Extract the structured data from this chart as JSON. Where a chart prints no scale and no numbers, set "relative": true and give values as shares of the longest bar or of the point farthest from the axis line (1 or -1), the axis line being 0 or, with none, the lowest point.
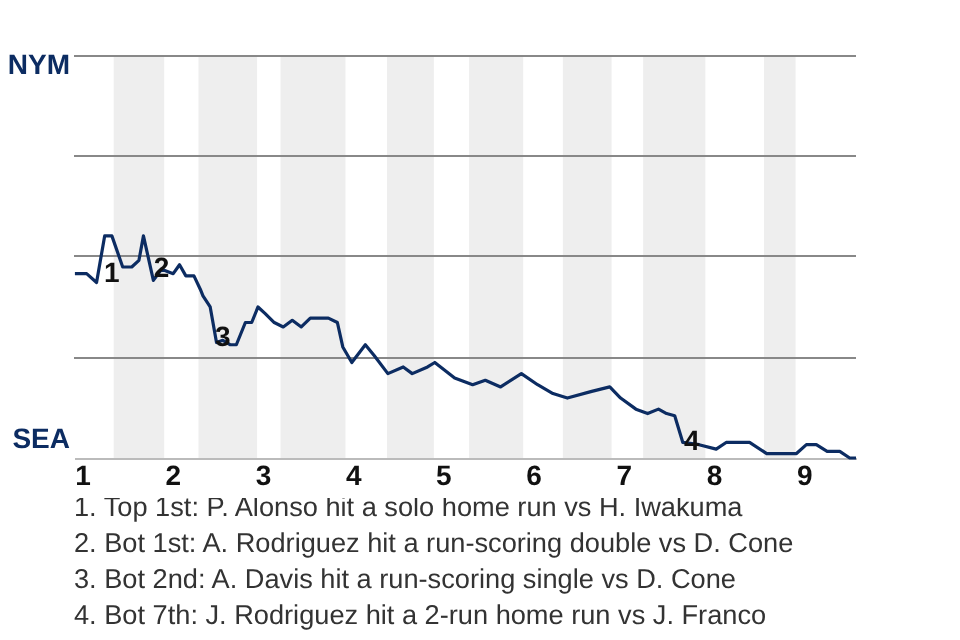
{
  "chart_data": {
    "type": "line",
    "relative": true,
    "x": [
      0.92,
      1.05,
      1.16,
      1.25,
      1.33,
      1.45,
      1.55,
      1.63,
      1.68,
      1.79,
      1.88,
      2.01,
      2.08,
      2.15,
      2.24,
      2.31,
      2.34,
      2.42,
      2.49,
      2.56,
      2.64,
      2.71,
      2.81,
      2.88,
      2.95,
      3.03,
      3.13,
      3.23,
      3.33,
      3.43,
      3.53,
      3.73,
      3.83,
      3.89,
      3.99,
      4.14,
      4.24,
      4.39,
      4.56,
      4.66,
      4.83,
      4.91,
      5.13,
      5.33,
      5.47,
      5.64,
      5.87,
      6.05,
      6.22,
      6.38,
      6.65,
      6.85,
      6.97,
      7.14,
      7.27,
      7.39,
      7.48,
      7.57,
      7.66,
      7.84,
      8.03,
      8.14,
      8.4,
      8.59,
      8.92,
      9.03,
      9.14,
      9.26,
      9.4,
      9.51,
      9.58
    ],
    "series": [
      {
        "color": "#0c2c62",
        "values": [
          0.83,
          0.83,
          0.79,
          1,
          1,
          0.86,
          0.86,
          0.89,
          1,
          0.8,
          0.85,
          0.83,
          0.87,
          0.82,
          0.82,
          0.76,
          0.73,
          0.68,
          0.52,
          0.53,
          0.51,
          0.51,
          0.61,
          0.61,
          0.68,
          0.65,
          0.61,
          0.59,
          0.62,
          0.59,
          0.63,
          0.63,
          0.61,
          0.5,
          0.43,
          0.51,
          0.46,
          0.38,
          0.41,
          0.38,
          0.41,
          0.43,
          0.36,
          0.33,
          0.35,
          0.32,
          0.38,
          0.33,
          0.29,
          0.27,
          0.3,
          0.32,
          0.27,
          0.22,
          0.2,
          0.22,
          0.2,
          0.19,
          0.07,
          0.06,
          0.04,
          0.07,
          0.07,
          0.02,
          0.02,
          0.06,
          0.06,
          0.03,
          0.03,
          0,
          0
        ]
      }
    ],
    "xlim": [
      0.91,
      9.58
    ],
    "xticks": [
      1,
      2,
      3,
      4,
      5,
      6,
      7,
      8,
      9
    ],
    "ref_lines": [
      {
        "axis": "y",
        "value": 0.45,
        "color": "#888888"
      },
      {
        "axis": "y",
        "value": 0.91,
        "color": "#888888"
      },
      {
        "axis": "y",
        "value": 1.36,
        "color": "#888888"
      },
      {
        "axis": "y",
        "value": 1.81,
        "color": "#888888"
      }
    ],
    "bands": [
      {
        "axis": "x",
        "from": 1.35,
        "to": 1.91,
        "color": "#eeeeee"
      },
      {
        "axis": "x",
        "from": 2.29,
        "to": 2.94,
        "color": "#eeeeee"
      },
      {
        "axis": "x",
        "from": 3.2,
        "to": 3.92,
        "color": "#eeeeee"
      },
      {
        "axis": "x",
        "from": 4.38,
        "to": 4.9,
        "color": "#eeeeee"
      },
      {
        "axis": "x",
        "from": 5.29,
        "to": 5.89,
        "color": "#eeeeee"
      },
      {
        "axis": "x",
        "from": 6.33,
        "to": 6.87,
        "color": "#eeeeee"
      },
      {
        "axis": "x",
        "from": 7.22,
        "to": 7.91,
        "color": "#eeeeee"
      },
      {
        "axis": "x",
        "from": 8.56,
        "to": 8.91,
        "color": "#eeeeee"
      }
    ],
    "annotations": [
      "NYM",
      "SEA",
      {
        "text": "1",
        "x": 1.33,
        "y": 0.83
      },
      {
        "text": "2",
        "x": 1.88,
        "y": 0.85
      },
      {
        "text": "3",
        "x": 2.56,
        "y": 0.54
      },
      {
        "text": "4",
        "x": 7.76,
        "y": 0.07
      },
      "1. Top 1st: P. Alonso hit a solo home run vs H. Iwakuma",
      "2. Bot 1st: A. Rodriguez hit a run-scoring double vs D. Cone",
      "3. Bot 2nd: A. Davis hit a run-scoring single vs D. Cone",
      "4. Bot 7th: J. Rodriguez hit a 2-run home run vs J. Franco"
    ]
  }
}
